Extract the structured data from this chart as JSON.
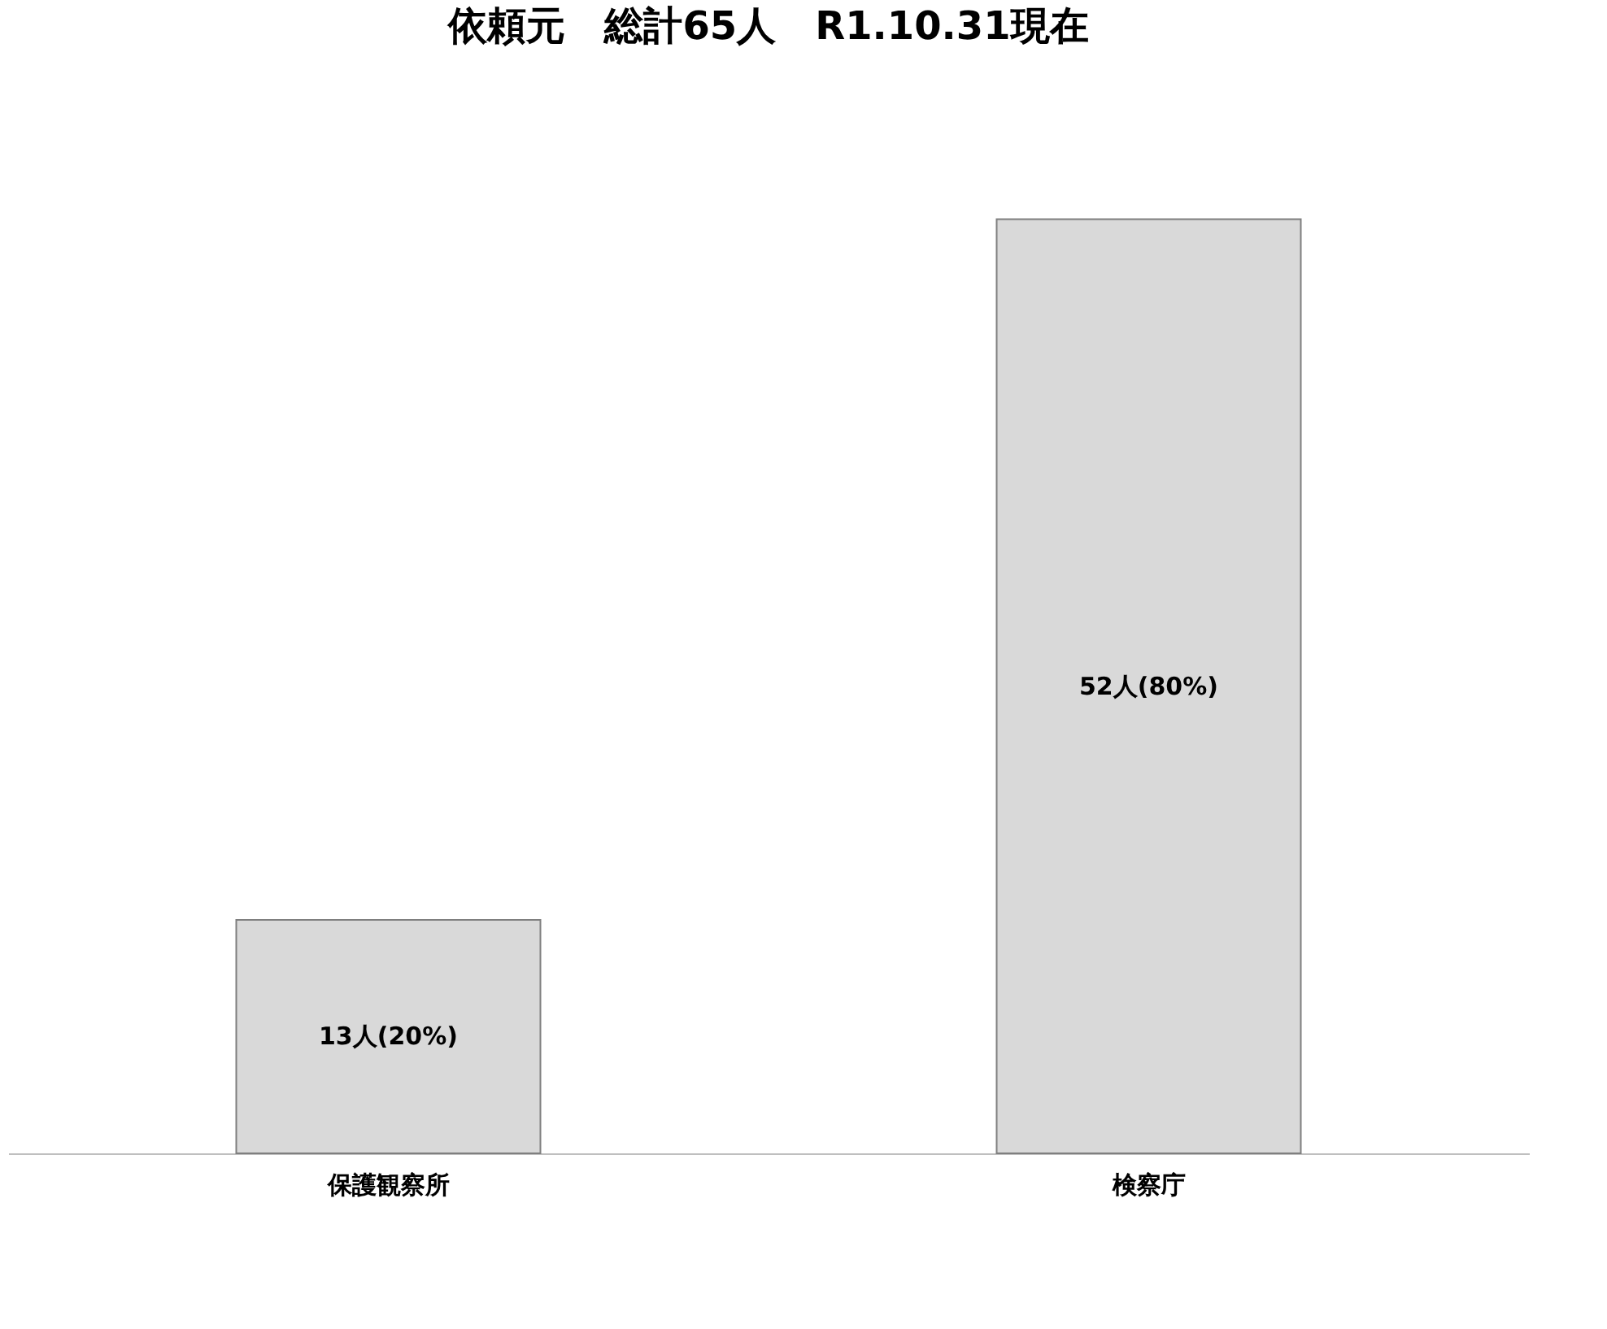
{
  "chart_data": {
    "type": "bar",
    "title": "依頼元　総計65人　R1.10.31現在",
    "categories": [
      "保護観察所",
      "検察庁"
    ],
    "values": [
      13,
      52
    ],
    "color": "#d9d9d9",
    "value_labels": [
      "13人(20%)",
      "52人(80%)"
    ],
    "tick_labels": "x"
  }
}
